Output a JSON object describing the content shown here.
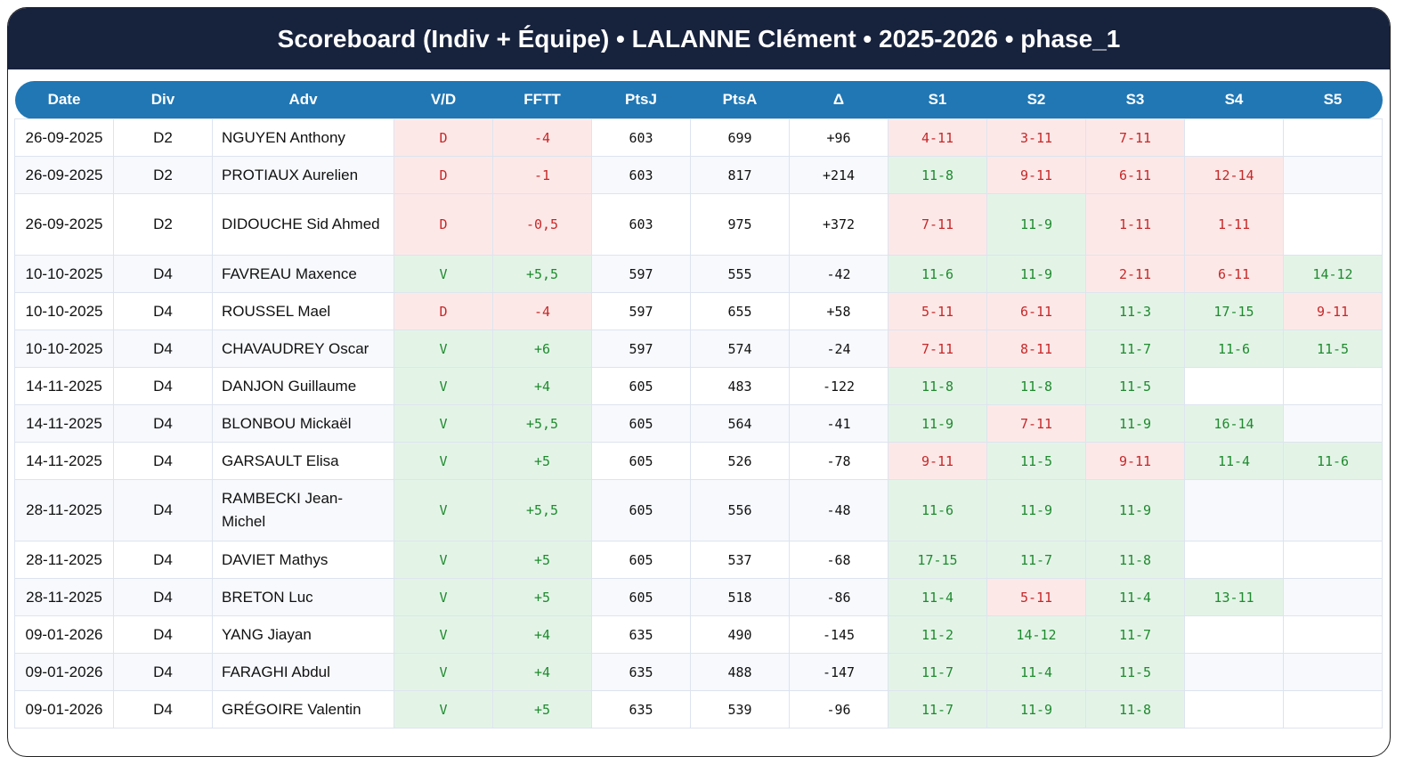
{
  "title": "Scoreboard (Indiv + Équipe) • LALANNE Clément • 2025-2026 • phase_1",
  "colors": {
    "header_bg": "#17223d",
    "table_header": "#2077b4",
    "win_bg": "#e3f4e7",
    "win_text": "#1f8a2e",
    "loss_bg": "#fde8e8",
    "loss_text": "#c62828"
  },
  "columns": [
    "Date",
    "Div",
    "Adv",
    "V/D",
    "FFTT",
    "PtsJ",
    "PtsA",
    "Δ",
    "S1",
    "S2",
    "S3",
    "S4",
    "S5"
  ],
  "rows": [
    {
      "date": "26-09-2025",
      "div": "D2",
      "adv": "NGUYEN Anthony",
      "vd": "D",
      "fftt": "-4",
      "ptsj": "603",
      "ptsa": "699",
      "delta": "+96",
      "sets": [
        "4-11",
        "3-11",
        "7-11",
        "",
        ""
      ]
    },
    {
      "date": "26-09-2025",
      "div": "D2",
      "adv": "PROTIAUX Aurelien",
      "vd": "D",
      "fftt": "-1",
      "ptsj": "603",
      "ptsa": "817",
      "delta": "+214",
      "sets": [
        "11-8",
        "9-11",
        "6-11",
        "12-14",
        ""
      ]
    },
    {
      "date": "26-09-2025",
      "div": "D2",
      "adv": "DIDOUCHE Sid Ahmed",
      "vd": "D",
      "fftt": "-0,5",
      "ptsj": "603",
      "ptsa": "975",
      "delta": "+372",
      "sets": [
        "7-11",
        "11-9",
        "1-11",
        "1-11",
        ""
      ]
    },
    {
      "date": "10-10-2025",
      "div": "D4",
      "adv": "FAVREAU Maxence",
      "vd": "V",
      "fftt": "+5,5",
      "ptsj": "597",
      "ptsa": "555",
      "delta": "-42",
      "sets": [
        "11-6",
        "11-9",
        "2-11",
        "6-11",
        "14-12"
      ]
    },
    {
      "date": "10-10-2025",
      "div": "D4",
      "adv": "ROUSSEL Mael",
      "vd": "D",
      "fftt": "-4",
      "ptsj": "597",
      "ptsa": "655",
      "delta": "+58",
      "sets": [
        "5-11",
        "6-11",
        "11-3",
        "17-15",
        "9-11"
      ]
    },
    {
      "date": "10-10-2025",
      "div": "D4",
      "adv": "CHAVAUDREY Oscar",
      "vd": "V",
      "fftt": "+6",
      "ptsj": "597",
      "ptsa": "574",
      "delta": "-24",
      "sets": [
        "7-11",
        "8-11",
        "11-7",
        "11-6",
        "11-5"
      ]
    },
    {
      "date": "14-11-2025",
      "div": "D4",
      "adv": "DANJON Guillaume",
      "vd": "V",
      "fftt": "+4",
      "ptsj": "605",
      "ptsa": "483",
      "delta": "-122",
      "sets": [
        "11-8",
        "11-8",
        "11-5",
        "",
        ""
      ]
    },
    {
      "date": "14-11-2025",
      "div": "D4",
      "adv": "BLONBOU Mickaël",
      "vd": "V",
      "fftt": "+5,5",
      "ptsj": "605",
      "ptsa": "564",
      "delta": "-41",
      "sets": [
        "11-9",
        "7-11",
        "11-9",
        "16-14",
        ""
      ]
    },
    {
      "date": "14-11-2025",
      "div": "D4",
      "adv": "GARSAULT Elisa",
      "vd": "V",
      "fftt": "+5",
      "ptsj": "605",
      "ptsa": "526",
      "delta": "-78",
      "sets": [
        "9-11",
        "11-5",
        "9-11",
        "11-4",
        "11-6"
      ]
    },
    {
      "date": "28-11-2025",
      "div": "D4",
      "adv": "RAMBECKI Jean-Michel",
      "vd": "V",
      "fftt": "+5,5",
      "ptsj": "605",
      "ptsa": "556",
      "delta": "-48",
      "sets": [
        "11-6",
        "11-9",
        "11-9",
        "",
        ""
      ]
    },
    {
      "date": "28-11-2025",
      "div": "D4",
      "adv": "DAVIET Mathys",
      "vd": "V",
      "fftt": "+5",
      "ptsj": "605",
      "ptsa": "537",
      "delta": "-68",
      "sets": [
        "17-15",
        "11-7",
        "11-8",
        "",
        ""
      ]
    },
    {
      "date": "28-11-2025",
      "div": "D4",
      "adv": "BRETON Luc",
      "vd": "V",
      "fftt": "+5",
      "ptsj": "605",
      "ptsa": "518",
      "delta": "-86",
      "sets": [
        "11-4",
        "5-11",
        "11-4",
        "13-11",
        ""
      ]
    },
    {
      "date": "09-01-2026",
      "div": "D4",
      "adv": "YANG Jiayan",
      "vd": "V",
      "fftt": "+4",
      "ptsj": "635",
      "ptsa": "490",
      "delta": "-145",
      "sets": [
        "11-2",
        "14-12",
        "11-7",
        "",
        ""
      ]
    },
    {
      "date": "09-01-2026",
      "div": "D4",
      "adv": "FARAGHI Abdul",
      "vd": "V",
      "fftt": "+4",
      "ptsj": "635",
      "ptsa": "488",
      "delta": "-147",
      "sets": [
        "11-7",
        "11-4",
        "11-5",
        "",
        ""
      ]
    },
    {
      "date": "09-01-2026",
      "div": "D4",
      "adv": "GRÉGOIRE Valentin",
      "vd": "V",
      "fftt": "+5",
      "ptsj": "635",
      "ptsa": "539",
      "delta": "-96",
      "sets": [
        "11-7",
        "11-9",
        "11-8",
        "",
        ""
      ]
    }
  ]
}
